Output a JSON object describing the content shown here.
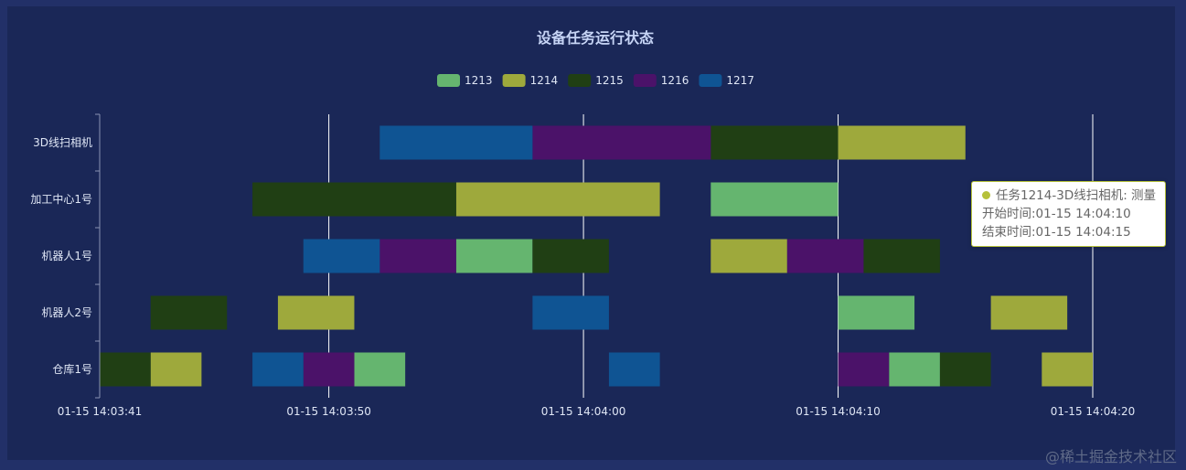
{
  "chart_data": {
    "type": "gantt",
    "title": "设备任务运行状态",
    "date_label": "01-15",
    "categories": [
      "3D线扫相机",
      "加工中心1号",
      "机器人1号",
      "机器人2号",
      "仓库1号"
    ],
    "x_ticks": [
      "01-15 14:03:41",
      "01-15 14:03:50",
      "01-15 14:04:00",
      "01-15 14:04:10",
      "01-15 14:04:20"
    ],
    "x_range": [
      "14:03:41",
      "14:04:20"
    ],
    "vertical_gridlines": true,
    "legend_position": "top-center",
    "series": [
      {
        "name": "1213",
        "color": "#65b56f",
        "tasks": [
          {
            "category": "加工中心1号",
            "start": "14:04:05",
            "end": "14:04:10"
          },
          {
            "category": "机器人1号",
            "start": "14:03:55",
            "end": "14:03:58"
          },
          {
            "category": "机器人2号",
            "start": "14:04:10",
            "end": "14:04:13"
          },
          {
            "category": "仓库1号",
            "start": "14:03:51",
            "end": "14:03:53"
          },
          {
            "category": "仓库1号",
            "start": "14:04:12",
            "end": "14:04:14"
          }
        ]
      },
      {
        "name": "1214",
        "color": "#9ea93c",
        "tasks": [
          {
            "category": "3D线扫相机",
            "start": "14:04:10",
            "end": "14:04:15"
          },
          {
            "category": "加工中心1号",
            "start": "14:03:55",
            "end": "14:04:03"
          },
          {
            "category": "机器人1号",
            "start": "14:04:05",
            "end": "14:04:08"
          },
          {
            "category": "机器人2号",
            "start": "14:03:48",
            "end": "14:03:51"
          },
          {
            "category": "机器人2号",
            "start": "14:04:16",
            "end": "14:04:19"
          },
          {
            "category": "仓库1号",
            "start": "14:03:43",
            "end": "14:03:45"
          },
          {
            "category": "仓库1号",
            "start": "14:04:18",
            "end": "14:04:20"
          }
        ]
      },
      {
        "name": "1215",
        "color": "#203f14",
        "tasks": [
          {
            "category": "3D线扫相机",
            "start": "14:04:05",
            "end": "14:04:10"
          },
          {
            "category": "加工中心1号",
            "start": "14:03:47",
            "end": "14:03:55"
          },
          {
            "category": "机器人1号",
            "start": "14:03:58",
            "end": "14:04:01"
          },
          {
            "category": "机器人1号",
            "start": "14:04:11",
            "end": "14:04:14"
          },
          {
            "category": "机器人2号",
            "start": "14:03:43",
            "end": "14:03:46"
          },
          {
            "category": "仓库1号",
            "start": "14:03:41",
            "end": "14:03:43"
          },
          {
            "category": "仓库1号",
            "start": "14:04:14",
            "end": "14:04:16"
          }
        ]
      },
      {
        "name": "1216",
        "color": "#4b1269",
        "tasks": [
          {
            "category": "3D线扫相机",
            "start": "14:03:58",
            "end": "14:04:05"
          },
          {
            "category": "机器人1号",
            "start": "14:03:52",
            "end": "14:03:55"
          },
          {
            "category": "机器人1号",
            "start": "14:04:08",
            "end": "14:04:11"
          },
          {
            "category": "仓库1号",
            "start": "14:03:49",
            "end": "14:03:51"
          },
          {
            "category": "仓库1号",
            "start": "14:04:10",
            "end": "14:04:12"
          }
        ]
      },
      {
        "name": "1217",
        "color": "#0f5493",
        "tasks": [
          {
            "category": "3D线扫相机",
            "start": "14:03:52",
            "end": "14:03:58"
          },
          {
            "category": "机器人1号",
            "start": "14:03:49",
            "end": "14:03:52"
          },
          {
            "category": "机器人2号",
            "start": "14:03:58",
            "end": "14:04:01"
          },
          {
            "category": "仓库1号",
            "start": "14:03:47",
            "end": "14:03:49"
          },
          {
            "category": "仓库1号",
            "start": "14:04:01",
            "end": "14:04:03"
          }
        ]
      }
    ]
  },
  "tooltip": {
    "line1": "任务1214-3D线扫相机: 测量",
    "line2": "开始时间:01-15 14:04:10",
    "line3": "结束时间:01-15 14:04:15",
    "marker_color": "#b6c13a"
  },
  "watermark": "@稀土掘金技术社区",
  "colors": {
    "background": "#1a2757",
    "border": "#223068",
    "text": "#dfe6f5",
    "title": "#c6d4f5"
  }
}
